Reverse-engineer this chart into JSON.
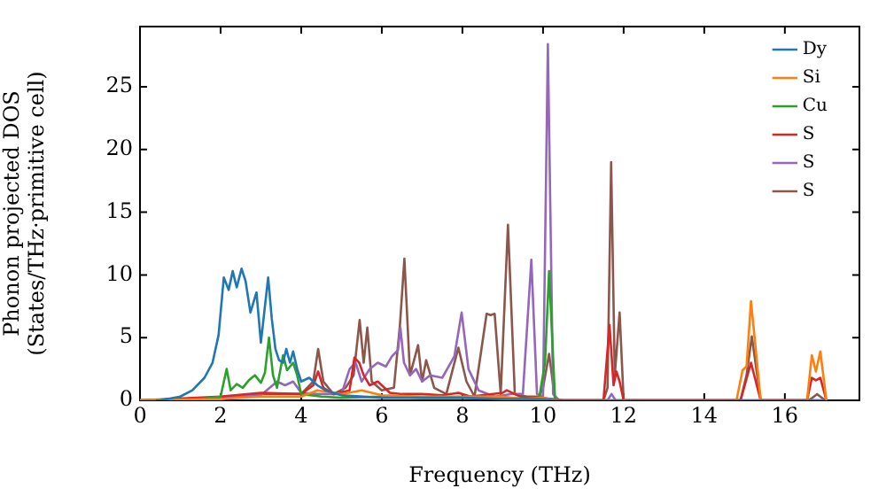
{
  "chart_data": {
    "type": "line",
    "xlabel": "Frequency (THz)",
    "ylabel": "Phonon projected DOS\n(States/THz·primitive cell)",
    "xlim": [
      0,
      17.85
    ],
    "xticks": [
      0,
      2,
      4,
      6,
      8,
      10,
      12,
      14,
      16
    ],
    "ylim": [
      0,
      29.8
    ],
    "yticks": [
      0,
      5,
      10,
      15,
      20,
      25
    ],
    "grid": false,
    "legend": "top right",
    "marker": "none",
    "line_style": "solid",
    "series": [
      {
        "name": "Dy",
        "color": "#1f77b4",
        "x": [
          0.4,
          0.5,
          1.0,
          1.3,
          1.6,
          1.8,
          1.95,
          2.08,
          2.2,
          2.3,
          2.4,
          2.52,
          2.62,
          2.74,
          2.89,
          3.0,
          3.1,
          3.18,
          3.27,
          3.36,
          3.45,
          3.55,
          3.63,
          3.72,
          3.8,
          3.9,
          4.0,
          4.2,
          4.4,
          4.6,
          5.0,
          6.0,
          7.0,
          8.0,
          9.0,
          10.0,
          10.3,
          17.0
        ],
        "values": [
          0,
          0,
          0.3,
          0.8,
          1.8,
          3,
          5.2,
          9.8,
          8.8,
          10.3,
          9,
          10.5,
          9.5,
          7,
          8.6,
          4.6,
          7.5,
          9.8,
          6.5,
          4.1,
          3.2,
          3,
          4.1,
          3,
          3.9,
          2.5,
          1.5,
          1.8,
          1.2,
          0.8,
          0.4,
          0.2,
          0.2,
          0.2,
          0.1,
          0.1,
          0,
          0
        ]
      },
      {
        "name": "Si",
        "color": "#ff7f0e",
        "x": [
          0,
          2,
          3,
          4,
          4.4,
          5,
          5.5,
          6,
          7,
          8,
          9,
          9.5,
          10,
          10.3,
          14.8,
          14.95,
          15.05,
          15.16,
          15.28,
          15.4,
          16.55,
          16.67,
          16.77,
          16.88,
          17.03
        ],
        "values": [
          0,
          0.1,
          0.3,
          0.3,
          0.8,
          0.5,
          0.8,
          0.4,
          0.3,
          0.3,
          0.3,
          0.1,
          0.2,
          0,
          0,
          2.4,
          2.7,
          7.9,
          4,
          0,
          0,
          3.6,
          2.3,
          3.9,
          0
        ]
      },
      {
        "name": "Cu",
        "color": "#2ca02c",
        "x": [
          0,
          1.5,
          2.0,
          2.15,
          2.25,
          2.4,
          2.55,
          2.7,
          2.85,
          3.0,
          3.1,
          3.2,
          3.3,
          3.4,
          3.55,
          3.65,
          3.8,
          3.9,
          4.0,
          4.5,
          5,
          6,
          7,
          8,
          9,
          9.9,
          10.05,
          10.15,
          10.3,
          10.5
        ],
        "values": [
          0,
          0.1,
          0.3,
          2.5,
          0.8,
          1.3,
          1,
          1.6,
          2,
          1.4,
          2.2,
          5,
          2,
          1,
          3.6,
          2.4,
          3,
          2,
          0.5,
          0.3,
          0.2,
          0.3,
          0.2,
          0.2,
          0.2,
          0.1,
          3,
          10.3,
          0,
          0
        ]
      },
      {
        "name": "S",
        "color": "#d62728",
        "x": [
          0,
          2,
          3,
          4,
          4.3,
          4.42,
          4.55,
          4.8,
          5.2,
          5.32,
          5.44,
          5.55,
          5.7,
          5.9,
          6.0,
          6.2,
          6.5,
          7,
          7.5,
          7.9,
          8.2,
          9.0,
          9.1,
          9.5,
          10,
          10.5,
          11.5,
          11.65,
          11.75,
          11.82,
          11.9,
          12.0,
          14.9,
          15.16,
          15.4,
          16.55,
          16.67,
          16.77,
          16.88,
          17.03
        ],
        "values": [
          0,
          0.3,
          0.6,
          0.5,
          1.2,
          2.3,
          1,
          0.5,
          0.8,
          3.4,
          3,
          2,
          1.2,
          1.5,
          1.2,
          0.6,
          0.5,
          0.5,
          0.4,
          0.6,
          0.3,
          0.6,
          0.8,
          0.2,
          0.2,
          0,
          0,
          6,
          1.2,
          2.3,
          1.5,
          0,
          0,
          3,
          0,
          0,
          1.8,
          1.6,
          1.8,
          0
        ]
      },
      {
        "name": "S",
        "color": "#9467bd",
        "x": [
          0,
          2,
          3,
          3.4,
          3.6,
          3.8,
          4.0,
          4.4,
          5.0,
          5.2,
          5.35,
          5.5,
          5.7,
          5.9,
          6.1,
          6.25,
          6.4,
          6.46,
          6.55,
          6.7,
          6.85,
          7.0,
          7.2,
          7.5,
          7.8,
          7.98,
          8.15,
          8.4,
          8.8,
          9.2,
          9.5,
          9.71,
          9.85,
          10.0,
          10.12,
          10.25,
          10.4,
          11.6,
          11.7,
          11.8,
          17
        ],
        "values": [
          0,
          0.2,
          0.4,
          1.5,
          1.2,
          1.5,
          0.6,
          0.5,
          0.5,
          2.5,
          3,
          1.5,
          2.5,
          3,
          2.7,
          3.5,
          4,
          5.8,
          3,
          2,
          2.5,
          1.5,
          2,
          1.8,
          3.5,
          7,
          2.5,
          0.8,
          0.3,
          0.5,
          0.5,
          11.2,
          0.5,
          0.3,
          28.4,
          0.5,
          0,
          0,
          0.5,
          0,
          0
        ]
      },
      {
        "name": "S",
        "color": "#8c564b",
        "x": [
          0,
          2,
          3,
          4.0,
          4.3,
          4.42,
          4.55,
          4.8,
          5.1,
          5.3,
          5.45,
          5.55,
          5.64,
          5.75,
          6.0,
          6.3,
          6.45,
          6.56,
          6.7,
          6.9,
          7.0,
          7.1,
          7.3,
          7.6,
          7.9,
          8.1,
          8.3,
          8.6,
          8.7,
          8.8,
          8.95,
          9.13,
          9.3,
          9.6,
          9.9,
          10.0,
          10.15,
          10.3,
          11.5,
          11.6,
          11.69,
          11.78,
          11.9,
          12.0,
          14.9,
          15.05,
          15.18,
          15.4,
          16.6,
          16.8,
          17
        ],
        "values": [
          0,
          0.2,
          0.5,
          0.5,
          1.5,
          4.1,
          1.5,
          0.5,
          1,
          2,
          6.4,
          3,
          5.8,
          1.5,
          0.8,
          1,
          6,
          11.3,
          2,
          4.4,
          1.5,
          3.2,
          1,
          0.5,
          4.2,
          1.5,
          0.3,
          6.9,
          6.8,
          6.9,
          0.5,
          14,
          0.5,
          0.3,
          0.3,
          1,
          3.7,
          0,
          0,
          1,
          19,
          2,
          7,
          0,
          0,
          2,
          5.1,
          0,
          0,
          0.5,
          0
        ]
      }
    ]
  }
}
